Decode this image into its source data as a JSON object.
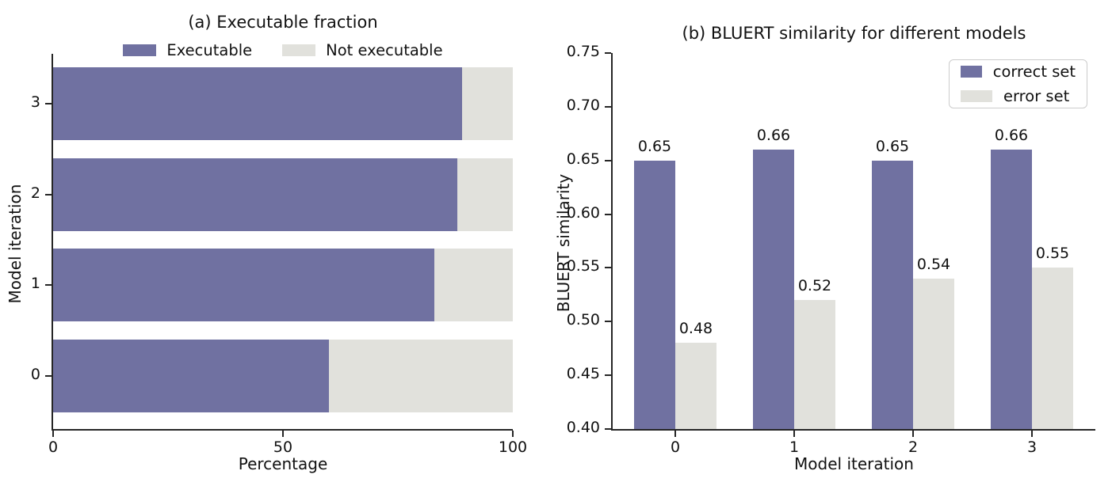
{
  "figure": {
    "background": "#ffffff",
    "colors": {
      "primary": "#7071a1",
      "secondary": "#e1e1dc",
      "axis": "#262626",
      "text": "#111111",
      "legend_border": "#cccccc"
    }
  },
  "chart_data": [
    {
      "id": "executable-fraction",
      "type": "bar",
      "orientation": "horizontal",
      "stacked": true,
      "title": "(a) Executable fraction",
      "xlabel": "Percentage",
      "ylabel": "Model iteration",
      "categories": [
        "0",
        "1",
        "2",
        "3"
      ],
      "series": [
        {
          "name": "Executable",
          "color_key": "primary",
          "values": [
            60,
            83,
            88,
            89
          ]
        },
        {
          "name": "Not executable",
          "color_key": "secondary",
          "values": [
            40,
            17,
            12,
            11
          ]
        }
      ],
      "xlim": [
        0,
        100
      ],
      "xticks": [
        0,
        50,
        100
      ],
      "grid": false,
      "legend_position": "top-center",
      "legend_frame": false
    },
    {
      "id": "bluert-similarity",
      "type": "bar",
      "orientation": "vertical",
      "grouped": true,
      "title": "(b) BLUERT similarity for different models",
      "xlabel": "Model iteration",
      "ylabel": "BLUERT similarity",
      "categories": [
        "0",
        "1",
        "2",
        "3"
      ],
      "series": [
        {
          "name": "correct set",
          "color_key": "primary",
          "values": [
            0.65,
            0.66,
            0.65,
            0.66
          ]
        },
        {
          "name": "error set",
          "color_key": "secondary",
          "values": [
            0.48,
            0.52,
            0.54,
            0.55
          ]
        }
      ],
      "ylim": [
        0.4,
        0.75
      ],
      "yticks": [
        0.4,
        0.45,
        0.5,
        0.55,
        0.6,
        0.65,
        0.7,
        0.75
      ],
      "bar_labels": true,
      "grid": false,
      "legend_position": "upper-right",
      "legend_frame": true
    }
  ]
}
